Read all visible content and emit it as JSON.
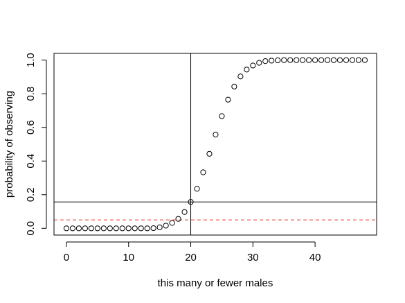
{
  "chart_data": {
    "type": "scatter",
    "title": "",
    "xlabel": "this many or fewer males",
    "ylabel": "probability of observing",
    "xlim": [
      -2.0,
      49.9
    ],
    "ylim": [
      -0.04,
      1.04
    ],
    "xticks": [
      0,
      10,
      20,
      30,
      40
    ],
    "yticks": [
      0.0,
      0.2,
      0.4,
      0.6,
      0.8,
      1.0
    ],
    "xtick_labels": [
      "0",
      "10",
      "20",
      "30",
      "40"
    ],
    "ytick_labels": [
      "0.0",
      "0.2",
      "0.4",
      "0.6",
      "0.8",
      "1.0"
    ],
    "grid": false,
    "marker": "open-circle",
    "x": [
      0,
      1,
      2,
      3,
      4,
      5,
      6,
      7,
      8,
      9,
      10,
      11,
      12,
      13,
      14,
      15,
      16,
      17,
      18,
      19,
      20,
      21,
      22,
      23,
      24,
      25,
      26,
      27,
      28,
      29,
      30,
      31,
      32,
      33,
      34,
      35,
      36,
      37,
      38,
      39,
      40,
      41,
      42,
      43,
      44,
      45,
      46,
      47,
      48
    ],
    "y": [
      0,
      0,
      0,
      0,
      0,
      0,
      0,
      0,
      0,
      0,
      0,
      0,
      0,
      0,
      0.001,
      0.006,
      0.016,
      0.032,
      0.056,
      0.097,
      0.157,
      0.235,
      0.333,
      0.443,
      0.557,
      0.667,
      0.765,
      0.843,
      0.903,
      0.944,
      0.968,
      0.984,
      0.994,
      0.997,
      0.999,
      1,
      1,
      1,
      1,
      1,
      1,
      1,
      1,
      1,
      1,
      1,
      1,
      1,
      1
    ],
    "reference_lines": [
      {
        "orientation": "vertical",
        "value": 20,
        "color": "#000000",
        "style": "solid"
      },
      {
        "orientation": "horizontal",
        "value": 0.157,
        "color": "#000000",
        "style": "solid"
      },
      {
        "orientation": "horizontal",
        "value": 0.05,
        "color": "#e53935",
        "style": "dashed"
      }
    ]
  }
}
